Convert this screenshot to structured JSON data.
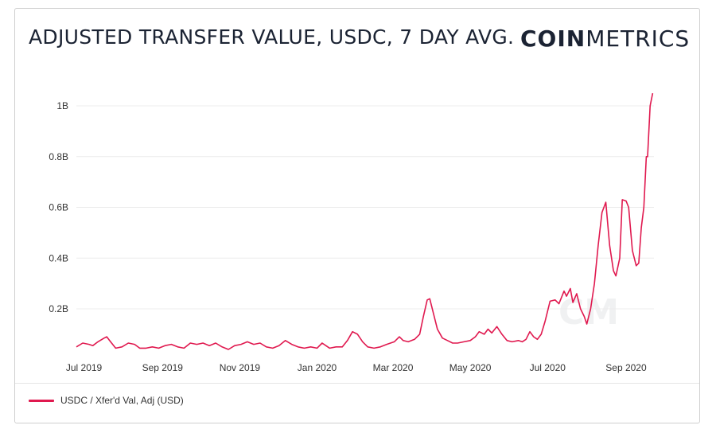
{
  "header": {
    "title": "ADJUSTED TRANSFER VALUE, USDC, 7 DAY AVG.",
    "logo_bold": "COIN",
    "logo_light": "METRICS"
  },
  "colors": {
    "series": "#e0194f",
    "grid": "#ececec",
    "text": "#333333"
  },
  "chart_data": {
    "type": "line",
    "title": "ADJUSTED TRANSFER VALUE, USDC, 7 DAY AVG.",
    "xlabel": "",
    "ylabel": "",
    "x_range": [
      "2019-06-25",
      "2020-09-23"
    ],
    "ylim": [
      0,
      1.1
    ],
    "y_unit": "B (USD)",
    "y_ticks": [
      0.2,
      0.4,
      0.6,
      0.8,
      1.0
    ],
    "y_tick_labels": [
      "0.2B",
      "0.4B",
      "0.6B",
      "0.8B",
      "1B"
    ],
    "x_ticks": [
      "2019-07-01",
      "2019-09-01",
      "2019-11-01",
      "2020-01-01",
      "2020-03-01",
      "2020-05-01",
      "2020-07-01",
      "2020-09-01"
    ],
    "x_tick_labels": [
      "Jul 2019",
      "Sep 2019",
      "Nov 2019",
      "Jan 2020",
      "Mar 2020",
      "May 2020",
      "Jul 2020",
      "Sep 2020"
    ],
    "grid": true,
    "legend": "bottom-left",
    "series": [
      {
        "name": "USDC / Xfer'd Val, Adj (USD)",
        "color": "#e0194f",
        "points": [
          [
            "2019-06-25",
            0.05
          ],
          [
            "2019-06-30",
            0.065
          ],
          [
            "2019-07-05",
            0.06
          ],
          [
            "2019-07-08",
            0.055
          ],
          [
            "2019-07-12",
            0.07
          ],
          [
            "2019-07-17",
            0.085
          ],
          [
            "2019-07-19",
            0.09
          ],
          [
            "2019-07-22",
            0.07
          ],
          [
            "2019-07-26",
            0.045
          ],
          [
            "2019-07-31",
            0.05
          ],
          [
            "2019-08-05",
            0.065
          ],
          [
            "2019-08-10",
            0.06
          ],
          [
            "2019-08-14",
            0.045
          ],
          [
            "2019-08-19",
            0.045
          ],
          [
            "2019-08-24",
            0.05
          ],
          [
            "2019-08-29",
            0.045
          ],
          [
            "2019-09-03",
            0.055
          ],
          [
            "2019-09-08",
            0.06
          ],
          [
            "2019-09-13",
            0.05
          ],
          [
            "2019-09-18",
            0.045
          ],
          [
            "2019-09-23",
            0.065
          ],
          [
            "2019-09-28",
            0.06
          ],
          [
            "2019-10-03",
            0.065
          ],
          [
            "2019-10-08",
            0.055
          ],
          [
            "2019-10-13",
            0.065
          ],
          [
            "2019-10-18",
            0.05
          ],
          [
            "2019-10-23",
            0.04
          ],
          [
            "2019-10-28",
            0.055
          ],
          [
            "2019-11-02",
            0.06
          ],
          [
            "2019-11-07",
            0.07
          ],
          [
            "2019-11-12",
            0.06
          ],
          [
            "2019-11-17",
            0.065
          ],
          [
            "2019-11-22",
            0.05
          ],
          [
            "2019-11-27",
            0.045
          ],
          [
            "2019-12-02",
            0.055
          ],
          [
            "2019-12-07",
            0.075
          ],
          [
            "2019-12-12",
            0.06
          ],
          [
            "2019-12-17",
            0.05
          ],
          [
            "2019-12-22",
            0.045
          ],
          [
            "2019-12-27",
            0.05
          ],
          [
            "2020-01-01",
            0.045
          ],
          [
            "2020-01-05",
            0.065
          ],
          [
            "2020-01-08",
            0.055
          ],
          [
            "2020-01-11",
            0.045
          ],
          [
            "2020-01-16",
            0.05
          ],
          [
            "2020-01-21",
            0.05
          ],
          [
            "2020-01-25",
            0.075
          ],
          [
            "2020-01-29",
            0.11
          ],
          [
            "2020-02-02",
            0.1
          ],
          [
            "2020-02-06",
            0.07
          ],
          [
            "2020-02-10",
            0.05
          ],
          [
            "2020-02-15",
            0.045
          ],
          [
            "2020-02-20",
            0.05
          ],
          [
            "2020-02-25",
            0.06
          ],
          [
            "2020-03-02",
            0.07
          ],
          [
            "2020-03-06",
            0.09
          ],
          [
            "2020-03-09",
            0.075
          ],
          [
            "2020-03-13",
            0.07
          ],
          [
            "2020-03-18",
            0.08
          ],
          [
            "2020-03-22",
            0.1
          ],
          [
            "2020-03-25",
            0.17
          ],
          [
            "2020-03-28",
            0.235
          ],
          [
            "2020-03-30",
            0.24
          ],
          [
            "2020-04-02",
            0.18
          ],
          [
            "2020-04-05",
            0.12
          ],
          [
            "2020-04-09",
            0.085
          ],
          [
            "2020-04-13",
            0.075
          ],
          [
            "2020-04-17",
            0.065
          ],
          [
            "2020-04-21",
            0.065
          ],
          [
            "2020-04-26",
            0.07
          ],
          [
            "2020-05-01",
            0.075
          ],
          [
            "2020-05-05",
            0.09
          ],
          [
            "2020-05-08",
            0.11
          ],
          [
            "2020-05-12",
            0.1
          ],
          [
            "2020-05-15",
            0.12
          ],
          [
            "2020-05-18",
            0.105
          ],
          [
            "2020-05-22",
            0.13
          ],
          [
            "2020-05-26",
            0.1
          ],
          [
            "2020-05-30",
            0.075
          ],
          [
            "2020-06-03",
            0.07
          ],
          [
            "2020-06-08",
            0.075
          ],
          [
            "2020-06-11",
            0.07
          ],
          [
            "2020-06-14",
            0.08
          ],
          [
            "2020-06-17",
            0.11
          ],
          [
            "2020-06-20",
            0.09
          ],
          [
            "2020-06-23",
            0.08
          ],
          [
            "2020-06-26",
            0.1
          ],
          [
            "2020-06-29",
            0.15
          ],
          [
            "2020-07-03",
            0.23
          ],
          [
            "2020-07-07",
            0.235
          ],
          [
            "2020-07-10",
            0.22
          ],
          [
            "2020-07-14",
            0.27
          ],
          [
            "2020-07-16",
            0.25
          ],
          [
            "2020-07-19",
            0.28
          ],
          [
            "2020-07-21",
            0.225
          ],
          [
            "2020-07-24",
            0.26
          ],
          [
            "2020-07-27",
            0.2
          ],
          [
            "2020-07-30",
            0.17
          ],
          [
            "2020-08-01",
            0.14
          ],
          [
            "2020-08-04",
            0.2
          ],
          [
            "2020-08-07",
            0.3
          ],
          [
            "2020-08-10",
            0.45
          ],
          [
            "2020-08-13",
            0.58
          ],
          [
            "2020-08-16",
            0.62
          ],
          [
            "2020-08-19",
            0.45
          ],
          [
            "2020-08-22",
            0.35
          ],
          [
            "2020-08-24",
            0.33
          ],
          [
            "2020-08-27",
            0.4
          ],
          [
            "2020-08-29",
            0.63
          ],
          [
            "2020-09-01",
            0.625
          ],
          [
            "2020-09-03",
            0.6
          ],
          [
            "2020-09-06",
            0.43
          ],
          [
            "2020-09-09",
            0.37
          ],
          [
            "2020-09-11",
            0.38
          ],
          [
            "2020-09-13",
            0.52
          ],
          [
            "2020-09-15",
            0.6
          ],
          [
            "2020-09-17",
            0.8
          ],
          [
            "2020-09-18",
            0.8
          ],
          [
            "2020-09-20",
            1.0
          ],
          [
            "2020-09-22",
            1.05
          ]
        ]
      }
    ]
  }
}
